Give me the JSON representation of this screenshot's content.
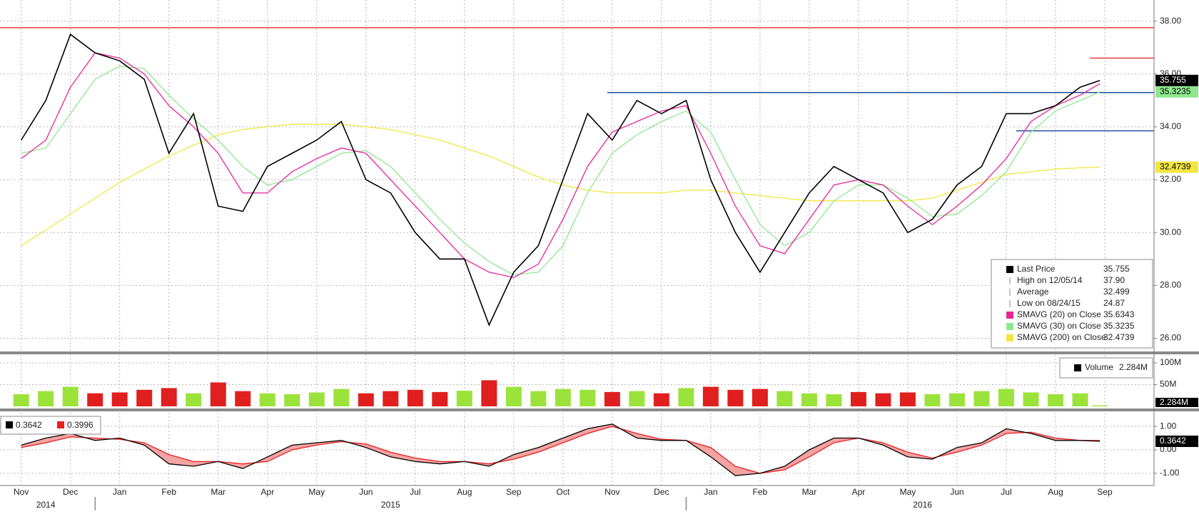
{
  "chart_data": [
    {
      "type": "line",
      "x": [
        0,
        0.5,
        1,
        1.5,
        2,
        2.5,
        3,
        3.5,
        4,
        4.5,
        5,
        5.5,
        6,
        6.5,
        7,
        7.5,
        8,
        8.5,
        9,
        9.5,
        10,
        10.5,
        11,
        11.5,
        12,
        12.5,
        13,
        13.5,
        14,
        14.5,
        15,
        15.5,
        16,
        16.5,
        17,
        17.5,
        18,
        18.5,
        19,
        19.5,
        20,
        20.5,
        21,
        21.5,
        21.9
      ],
      "xlim": [
        -0.43,
        23
      ],
      "ylim": [
        25.5,
        38.8
      ],
      "yticks": [
        {
          "value": 38,
          "label": "38.00"
        },
        {
          "value": 36,
          "label": "36.00"
        },
        {
          "value": 34,
          "label": "34.00"
        },
        {
          "value": 32,
          "label": "32.00"
        },
        {
          "value": 30,
          "label": "30.00"
        },
        {
          "value": 28,
          "label": "28.00"
        },
        {
          "value": 26,
          "label": "26.00"
        }
      ],
      "grid": true,
      "series": [
        {
          "name": "Last Price",
          "color": "#000000",
          "values": [
            33.5,
            35,
            37.5,
            36.8,
            36.5,
            35.8,
            33,
            34.5,
            31,
            30.8,
            32.5,
            33,
            33.5,
            34.2,
            32,
            31.5,
            30,
            29,
            29,
            26.5,
            28.5,
            29.5,
            32,
            34.5,
            33.5,
            35,
            34.5,
            35,
            32,
            30,
            28.5,
            30,
            31.5,
            32.5,
            32,
            31.5,
            30,
            30.5,
            31.8,
            32.5,
            34.5,
            34.5,
            34.8,
            35.5,
            35.755
          ]
        },
        {
          "name": "SMAVG (20) on Close",
          "color": "#e8259a",
          "values": [
            32.8,
            33.5,
            35.5,
            36.8,
            36.6,
            36,
            34.8,
            34,
            33,
            31.5,
            31.5,
            32.3,
            32.8,
            33.2,
            33,
            32,
            31,
            30,
            29,
            28.5,
            28.3,
            28.8,
            30.5,
            32.5,
            33.8,
            34.2,
            34.6,
            34.8,
            33,
            31,
            29.5,
            29.2,
            30.5,
            31.8,
            32,
            31.8,
            31,
            30.3,
            31,
            31.8,
            32.8,
            34.2,
            34.8,
            35.2,
            35.6343
          ]
        },
        {
          "name": "SMAVG (30) on Close",
          "color": "#8ee88e",
          "values": [
            33,
            33.2,
            34.5,
            35.8,
            36.3,
            36.2,
            35.2,
            34.3,
            33.5,
            32.5,
            31.8,
            32,
            32.5,
            33,
            33.1,
            32.5,
            31.5,
            30.5,
            29.6,
            28.9,
            28.4,
            28.5,
            29.5,
            31.5,
            33,
            33.7,
            34.2,
            34.6,
            33.8,
            32,
            30.3,
            29.5,
            30,
            31.2,
            31.8,
            31.8,
            31.3,
            30.6,
            30.7,
            31.4,
            32.3,
            33.8,
            34.6,
            35,
            35.3235
          ]
        },
        {
          "name": "SMAVG (200) on Close",
          "color": "#f2e640",
          "values": [
            29.5,
            30.1,
            30.7,
            31.3,
            31.9,
            32.4,
            32.9,
            33.3,
            33.7,
            33.9,
            34,
            34.1,
            34.1,
            34.1,
            34,
            33.9,
            33.7,
            33.5,
            33.2,
            32.9,
            32.5,
            32.1,
            31.8,
            31.6,
            31.5,
            31.5,
            31.5,
            31.6,
            31.6,
            31.5,
            31.4,
            31.3,
            31.2,
            31.2,
            31.2,
            31.2,
            31.2,
            31.3,
            31.6,
            31.9,
            32.2,
            32.3,
            32.4,
            32.45,
            32.4739
          ]
        }
      ],
      "levels": [
        {
          "value": 37.75,
          "color": "#e8403a"
        },
        {
          "value": 36.6,
          "color": "#e8403a",
          "x": [
            21.7,
            23
          ]
        },
        {
          "value": 35.3,
          "color": "#1f4e9c",
          "x": [
            11.9,
            23
          ]
        },
        {
          "value": 33.85,
          "color": "#1f4e9c",
          "x": [
            20.2,
            23
          ]
        }
      ],
      "stats": [
        {
          "name": "High on 12/05/14",
          "value": "37.90"
        },
        {
          "name": "Average",
          "value": "32.499"
        },
        {
          "name": "Low on 08/24/15",
          "value": "24.87"
        }
      ]
    },
    {
      "type": "bar",
      "x": [
        0,
        0.5,
        1,
        1.5,
        2,
        2.5,
        3,
        3.5,
        4,
        4.5,
        5,
        5.5,
        6,
        6.5,
        7,
        7.5,
        8,
        8.5,
        9,
        9.5,
        10,
        10.5,
        11,
        11.5,
        12,
        12.5,
        13,
        13.5,
        14,
        14.5,
        15,
        15.5,
        16,
        16.5,
        17,
        17.5,
        18,
        18.5,
        19,
        19.5,
        20,
        20.5,
        21,
        21.5,
        21.9
      ],
      "ylim": [
        0,
        118000000
      ],
      "yticks": [
        {
          "value": 100000000,
          "label": "100M"
        },
        {
          "value": 50000000,
          "label": "50M"
        }
      ],
      "up_color": "#9be33b",
      "down_color": "#e0201e",
      "series": [
        {
          "name": "Volume",
          "color": "#000000",
          "last_label": "2.284M",
          "values": [
            28000000,
            35000000,
            45000000,
            30000000,
            32000000,
            38000000,
            42000000,
            30000000,
            55000000,
            35000000,
            30000000,
            28000000,
            32000000,
            40000000,
            30000000,
            35000000,
            38000000,
            33000000,
            36000000,
            60000000,
            45000000,
            35000000,
            40000000,
            38000000,
            33000000,
            35000000,
            30000000,
            42000000,
            45000000,
            38000000,
            40000000,
            35000000,
            30000000,
            28000000,
            33000000,
            30000000,
            32000000,
            28000000,
            30000000,
            35000000,
            40000000,
            32000000,
            28000000,
            30000000,
            2284000
          ]
        }
      ]
    },
    {
      "type": "line",
      "x": [
        0,
        0.5,
        1,
        1.5,
        2,
        2.5,
        3,
        3.5,
        4,
        4.5,
        5,
        5.5,
        6,
        6.5,
        7,
        7.5,
        8,
        8.5,
        9,
        9.5,
        10,
        10.5,
        11,
        11.5,
        12,
        12.5,
        13,
        13.5,
        14,
        14.5,
        15,
        15.5,
        16,
        16.5,
        17,
        17.5,
        18,
        18.5,
        19,
        19.5,
        20,
        20.5,
        21,
        21.5,
        21.9
      ],
      "ylim": [
        -1.52,
        1.58
      ],
      "yticks": [
        {
          "value": 1,
          "label": "1.00"
        },
        {
          "value": 0,
          "label": "0.00"
        },
        {
          "value": -1,
          "label": "-1.00"
        }
      ],
      "series": [
        {
          "color": "#000000",
          "values": [
            0.2,
            0.5,
            0.7,
            0.4,
            0.5,
            0.2,
            -0.6,
            -0.7,
            -0.5,
            -0.8,
            -0.3,
            0.2,
            0.3,
            0.4,
            0.1,
            -0.3,
            -0.5,
            -0.6,
            -0.5,
            -0.7,
            -0.2,
            0.1,
            0.5,
            0.9,
            1.1,
            0.5,
            0.4,
            0.4,
            -0.3,
            -1.1,
            -1.0,
            -0.7,
            0,
            0.5,
            0.5,
            0.2,
            -0.3,
            -0.4,
            0.1,
            0.3,
            0.9,
            0.7,
            0.4,
            0.4,
            0.3642
          ]
        },
        {
          "color": "#e8201e",
          "values": [
            0.1,
            0.3,
            0.55,
            0.5,
            0.45,
            0.3,
            -0.2,
            -0.5,
            -0.5,
            -0.6,
            -0.5,
            0,
            0.2,
            0.35,
            0.25,
            -0.1,
            -0.35,
            -0.5,
            -0.5,
            -0.6,
            -0.4,
            -0.1,
            0.3,
            0.7,
            1.0,
            0.7,
            0.45,
            0.4,
            0.1,
            -0.7,
            -1.0,
            -0.85,
            -0.3,
            0.3,
            0.5,
            0.3,
            -0.1,
            -0.35,
            -0.1,
            0.2,
            0.7,
            0.75,
            0.5,
            0.4,
            0.3996
          ]
        }
      ],
      "xticks": [
        {
          "value": 0,
          "label": "Nov"
        },
        {
          "value": 1,
          "label": "Dec"
        },
        {
          "value": 2,
          "label": "Jan"
        },
        {
          "value": 3,
          "label": "Feb"
        },
        {
          "value": 4,
          "label": "Mar"
        },
        {
          "value": 5,
          "label": "Apr"
        },
        {
          "value": 6,
          "label": "May"
        },
        {
          "value": 7,
          "label": "Jun"
        },
        {
          "value": 8,
          "label": "Jul"
        },
        {
          "value": 9,
          "label": "Aug"
        },
        {
          "value": 10,
          "label": "Sep"
        },
        {
          "value": 11,
          "label": "Oct"
        },
        {
          "value": 12,
          "label": "Nov"
        },
        {
          "value": 13,
          "label": "Dec"
        },
        {
          "value": 14,
          "label": "Jan"
        },
        {
          "value": 15,
          "label": "Feb"
        },
        {
          "value": 16,
          "label": "Mar"
        },
        {
          "value": 17,
          "label": "Apr"
        },
        {
          "value": 18,
          "label": "May"
        },
        {
          "value": 19,
          "label": "Jun"
        },
        {
          "value": 20,
          "label": "Jul"
        },
        {
          "value": 21,
          "label": "Aug"
        },
        {
          "value": 22,
          "label": "Sep"
        }
      ],
      "years": [
        "2014",
        "2015",
        "2016"
      ]
    }
  ]
}
